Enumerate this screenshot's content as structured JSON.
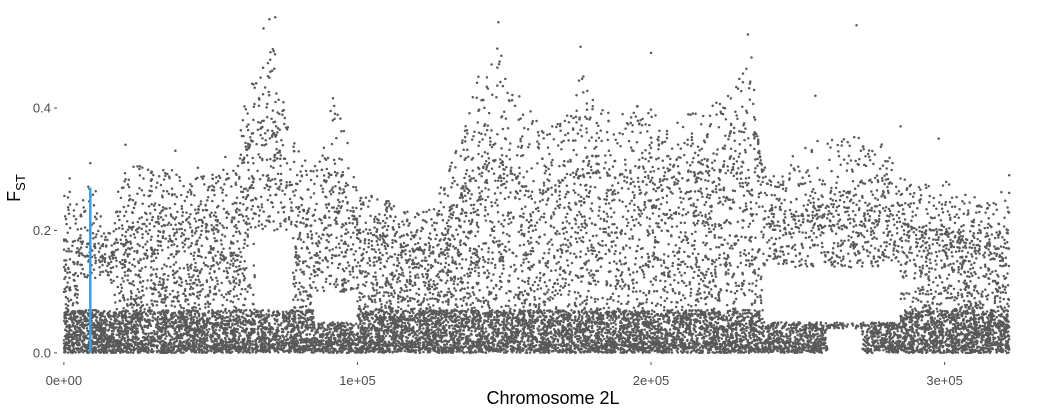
{
  "chart_data": {
    "type": "scatter",
    "title": "",
    "xlabel": "Chromosome 2L",
    "ylabel": "F",
    "ylabel_subscript": "ST",
    "xlim": [
      -2000,
      325000
    ],
    "ylim": [
      -0.005,
      0.56
    ],
    "x_ticks": [
      {
        "value": 0,
        "label": "0e+00"
      },
      {
        "value": 100000,
        "label": "1e+05"
      },
      {
        "value": 200000,
        "label": "2e+05"
      },
      {
        "value": 300000,
        "label": "3e+05"
      }
    ],
    "y_ticks": [
      {
        "value": 0.0,
        "label": "0.0"
      },
      {
        "value": 0.2,
        "label": "0.2"
      },
      {
        "value": 0.4,
        "label": "0.4"
      }
    ],
    "grid": false,
    "legend": "none",
    "point_color": "#595959",
    "highlight_color": "#3aa0e6",
    "series": [
      {
        "envelope": [
          {
            "x": 0,
            "y": 0.26
          },
          {
            "x": 2000,
            "y": 0.28
          },
          {
            "x": 5000,
            "y": 0.25
          },
          {
            "x": 8000,
            "y": 0.28
          },
          {
            "x": 12000,
            "y": 0.26
          },
          {
            "x": 14000,
            "y": 0.19
          },
          {
            "x": 17000,
            "y": 0.23
          },
          {
            "x": 20000,
            "y": 0.3
          },
          {
            "x": 25000,
            "y": 0.31
          },
          {
            "x": 30000,
            "y": 0.3
          },
          {
            "x": 40000,
            "y": 0.3
          },
          {
            "x": 50000,
            "y": 0.31
          },
          {
            "x": 58000,
            "y": 0.3
          },
          {
            "x": 62000,
            "y": 0.42
          },
          {
            "x": 66000,
            "y": 0.46
          },
          {
            "x": 70000,
            "y": 0.52
          },
          {
            "x": 73000,
            "y": 0.49
          },
          {
            "x": 76000,
            "y": 0.38
          },
          {
            "x": 80000,
            "y": 0.34
          },
          {
            "x": 84000,
            "y": 0.3
          },
          {
            "x": 88000,
            "y": 0.33
          },
          {
            "x": 92000,
            "y": 0.43
          },
          {
            "x": 96000,
            "y": 0.36
          },
          {
            "x": 100000,
            "y": 0.29
          },
          {
            "x": 105000,
            "y": 0.26
          },
          {
            "x": 110000,
            "y": 0.25
          },
          {
            "x": 118000,
            "y": 0.23
          },
          {
            "x": 126000,
            "y": 0.24
          },
          {
            "x": 130000,
            "y": 0.29
          },
          {
            "x": 136000,
            "y": 0.36
          },
          {
            "x": 142000,
            "y": 0.47
          },
          {
            "x": 148000,
            "y": 0.5
          },
          {
            "x": 152000,
            "y": 0.45
          },
          {
            "x": 158000,
            "y": 0.41
          },
          {
            "x": 164000,
            "y": 0.36
          },
          {
            "x": 170000,
            "y": 0.4
          },
          {
            "x": 176000,
            "y": 0.46
          },
          {
            "x": 182000,
            "y": 0.41
          },
          {
            "x": 188000,
            "y": 0.39
          },
          {
            "x": 194000,
            "y": 0.41
          },
          {
            "x": 200000,
            "y": 0.4
          },
          {
            "x": 206000,
            "y": 0.36
          },
          {
            "x": 212000,
            "y": 0.4
          },
          {
            "x": 218000,
            "y": 0.41
          },
          {
            "x": 224000,
            "y": 0.42
          },
          {
            "x": 230000,
            "y": 0.45
          },
          {
            "x": 234000,
            "y": 0.5
          },
          {
            "x": 237000,
            "y": 0.32
          },
          {
            "x": 242000,
            "y": 0.3
          },
          {
            "x": 250000,
            "y": 0.33
          },
          {
            "x": 258000,
            "y": 0.35
          },
          {
            "x": 266000,
            "y": 0.36
          },
          {
            "x": 272000,
            "y": 0.35
          },
          {
            "x": 278000,
            "y": 0.35
          },
          {
            "x": 284000,
            "y": 0.3
          },
          {
            "x": 290000,
            "y": 0.27
          },
          {
            "x": 298000,
            "y": 0.29
          },
          {
            "x": 306000,
            "y": 0.27
          },
          {
            "x": 314000,
            "y": 0.25
          },
          {
            "x": 322000,
            "y": 0.27
          }
        ],
        "dense_band": [
          {
            "x": 0,
            "y": 0.15
          },
          {
            "x": 10000,
            "y": 0.18
          },
          {
            "x": 15000,
            "y": 0.14
          },
          {
            "x": 20000,
            "y": 0.2
          },
          {
            "x": 58000,
            "y": 0.22
          },
          {
            "x": 62000,
            "y": 0.33
          },
          {
            "x": 72000,
            "y": 0.36
          },
          {
            "x": 78000,
            "y": 0.24
          },
          {
            "x": 88000,
            "y": 0.22
          },
          {
            "x": 94000,
            "y": 0.28
          },
          {
            "x": 100000,
            "y": 0.2
          },
          {
            "x": 126000,
            "y": 0.16
          },
          {
            "x": 136000,
            "y": 0.26
          },
          {
            "x": 148000,
            "y": 0.32
          },
          {
            "x": 160000,
            "y": 0.25
          },
          {
            "x": 176000,
            "y": 0.3
          },
          {
            "x": 200000,
            "y": 0.28
          },
          {
            "x": 230000,
            "y": 0.3
          },
          {
            "x": 236000,
            "y": 0.36
          },
          {
            "x": 240000,
            "y": 0.22
          },
          {
            "x": 270000,
            "y": 0.25
          },
          {
            "x": 290000,
            "y": 0.2
          },
          {
            "x": 322000,
            "y": 0.17
          }
        ],
        "gaps": [
          {
            "x_from": 5000,
            "x_to": 16000,
            "y_from": 0.07,
            "y_to": 0.12
          },
          {
            "x_from": 65000,
            "x_to": 78000,
            "y_from": 0.07,
            "y_to": 0.2
          },
          {
            "x_from": 85000,
            "x_to": 100000,
            "y_from": 0.05,
            "y_to": 0.1
          },
          {
            "x_from": 238000,
            "x_to": 285000,
            "y_from": 0.05,
            "y_to": 0.14
          },
          {
            "x_from": 260000,
            "x_to": 272000,
            "y_from": 0.0,
            "y_to": 0.04
          }
        ],
        "outliers": [
          {
            "x": 70000,
            "y": 0.545
          },
          {
            "x": 72000,
            "y": 0.548
          },
          {
            "x": 68000,
            "y": 0.53
          },
          {
            "x": 148000,
            "y": 0.54
          },
          {
            "x": 200000,
            "y": 0.49
          },
          {
            "x": 176000,
            "y": 0.5
          },
          {
            "x": 233000,
            "y": 0.52
          },
          {
            "x": 270000,
            "y": 0.535
          },
          {
            "x": 256000,
            "y": 0.42
          },
          {
            "x": 285000,
            "y": 0.37
          },
          {
            "x": 298000,
            "y": 0.35
          },
          {
            "x": 21000,
            "y": 0.34
          },
          {
            "x": 2000,
            "y": 0.285
          },
          {
            "x": 9000,
            "y": 0.31
          },
          {
            "x": 322000,
            "y": 0.29
          },
          {
            "x": 38000,
            "y": 0.33
          },
          {
            "x": 55000,
            "y": 0.32
          }
        ]
      },
      {
        "highlight_segment": {
          "x": 9000,
          "y_from": 0.0,
          "y_to": 0.27
        }
      }
    ]
  }
}
